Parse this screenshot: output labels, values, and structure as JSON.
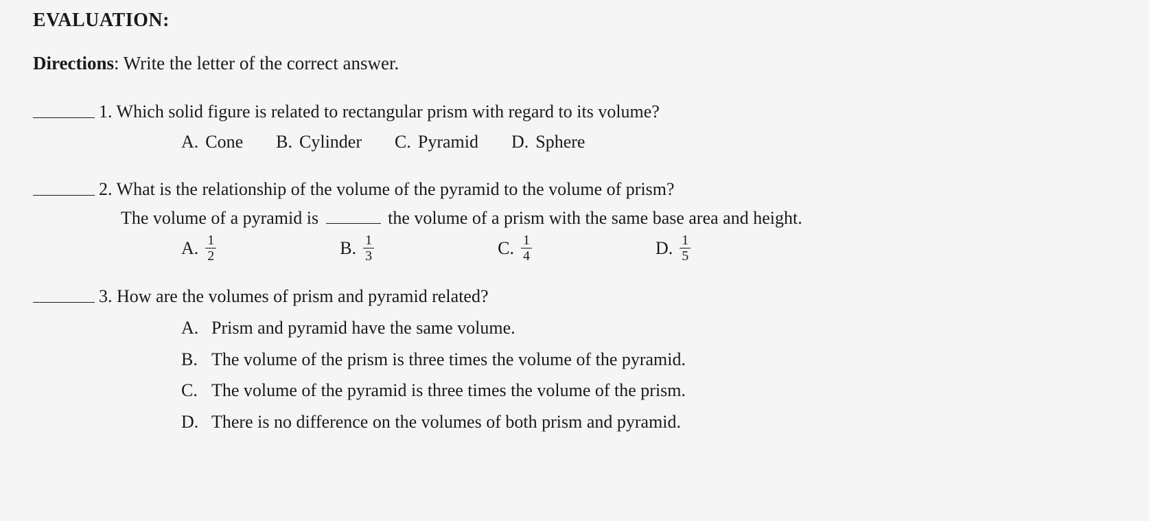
{
  "section_title": "EVALUATION:",
  "directions_label": "Directions",
  "directions_text": ": Write the letter of the correct answer.",
  "q1": {
    "num": "1.",
    "text": "Which solid figure is related to rectangular prism with regard to its volume?",
    "a_label": "A.",
    "a_text": "Cone",
    "b_label": "B.",
    "b_text": "Cylinder",
    "c_label": "C.",
    "c_text": "Pyramid",
    "d_label": "D.",
    "d_text": "Sphere"
  },
  "q2": {
    "num": "2.",
    "text": "What is the relationship of the volume of the pyramid to the volume of prism?",
    "sub_pre": "The volume of a pyramid is",
    "sub_post": "the volume of a prism with the same base area and height.",
    "a_label": "A.",
    "a_num": "1",
    "a_den": "2",
    "b_label": "B.",
    "b_num": "1",
    "b_den": "3",
    "c_label": "C.",
    "c_num": "1",
    "c_den": "4",
    "d_label": "D.",
    "d_num": "1",
    "d_den": "5"
  },
  "q3": {
    "num": "3.",
    "text": "How are the volumes of prism and pyramid related?",
    "a_label": "A.",
    "a_text": "Prism and pyramid have the same volume.",
    "b_label": "B.",
    "b_text": "The volume of the prism is three times the volume of the pyramid.",
    "c_label": "C.",
    "c_text": "The volume of the pyramid is three times the volume of the prism.",
    "d_label": "D.",
    "d_text": "There is no difference on the volumes of both prism and pyramid."
  }
}
